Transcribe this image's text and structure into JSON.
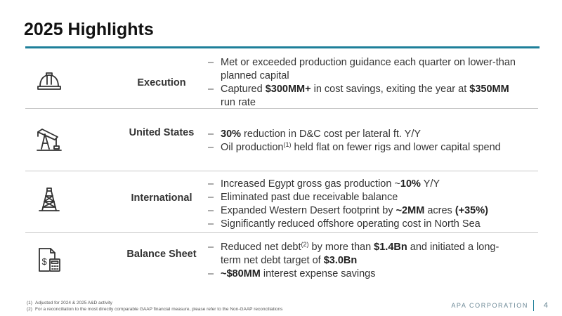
{
  "title": "2025 Highlights",
  "accent_color": "#1e7f9a",
  "rows": [
    {
      "label": "Execution",
      "icon": "hard-hat-icon",
      "bullets": [
        [
          {
            "t": "Met or exceeded production guidance each quarter on lower-than planned capital"
          }
        ],
        [
          {
            "t": "Captured "
          },
          {
            "t": "$300MM+",
            "b": true
          },
          {
            "t": " in cost savings, exiting the year at "
          },
          {
            "t": "$350MM",
            "b": true
          },
          {
            "t": " run rate"
          }
        ]
      ]
    },
    {
      "label": "United States",
      "icon": "pump-jack-icon",
      "bullets": [
        [
          {
            "t": "30%",
            "b": true
          },
          {
            "t": " reduction in D&C cost per lateral ft. Y/Y"
          }
        ],
        [
          {
            "t": "Oil production"
          },
          {
            "t": "(1)",
            "sup": true
          },
          {
            "t": " held flat on fewer rigs and lower capital spend"
          }
        ]
      ]
    },
    {
      "label": "International",
      "icon": "oil-derrick-icon",
      "bullets": [
        [
          {
            "t": "Increased Egypt gross gas production ~"
          },
          {
            "t": "10%",
            "b": true
          },
          {
            "t": " Y/Y"
          }
        ],
        [
          {
            "t": "Eliminated past due receivable balance"
          }
        ],
        [
          {
            "t": "Expanded Western Desert footprint by "
          },
          {
            "t": "~2MM",
            "b": true
          },
          {
            "t": " acres "
          },
          {
            "t": "(+35%)",
            "b": true
          }
        ],
        [
          {
            "t": "Significantly reduced offshore operating cost in North Sea"
          }
        ]
      ]
    },
    {
      "label": "Balance Sheet",
      "icon": "financial-document-icon",
      "bullets": [
        [
          {
            "t": "Reduced net debt"
          },
          {
            "t": "(2)",
            "sup": true
          },
          {
            "t": " by more than "
          },
          {
            "t": "$1.4Bn",
            "b": true
          },
          {
            "t": " and initiated a long-term net debt target of "
          },
          {
            "t": "$3.0Bn",
            "b": true
          }
        ],
        [
          {
            "t": "~$80MM",
            "b": true
          },
          {
            "t": " interest expense savings"
          }
        ]
      ]
    }
  ],
  "footnotes": [
    {
      "num": "(1)",
      "text": "Adjusted for 2024 & 2025 A&D activity"
    },
    {
      "num": "(2)",
      "text": "For a reconciliation to the most directly comparable GAAP financial measure, please refer to the Non-GAAP reconciliations"
    }
  ],
  "footer": {
    "company": "APA CORPORATION",
    "page": "4"
  }
}
